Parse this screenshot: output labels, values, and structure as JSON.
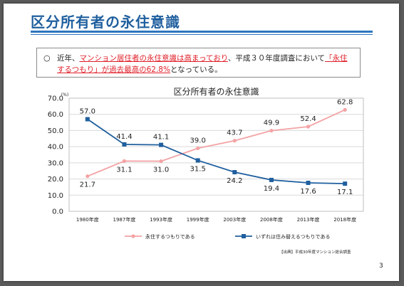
{
  "slide": {
    "title": "区分所有者の永住意識",
    "note_prefix": "近年、",
    "note_red1": "マンション居住者の永住意識は高まっており",
    "note_mid": "、平成３０年度調査において",
    "note_red2": "「永住するつもり」が過去最高の62.8%",
    "note_suffix": "となっている。",
    "source": "【出典】平成30年度マンション総合調査",
    "page_number": "3"
  },
  "chart_data": {
    "type": "line",
    "title": "区分所有者の永住意識",
    "unit_label": "(%)",
    "categories": [
      "1980年度",
      "1987年度",
      "1993年度",
      "1999年度",
      "2003年度",
      "2008年度",
      "2013年度",
      "2018年度"
    ],
    "ylim": [
      0,
      70
    ],
    "yticks": [
      "0.0",
      "10.0",
      "20.0",
      "30.0",
      "40.0",
      "50.0",
      "60.0",
      "70.0"
    ],
    "grid": true,
    "legend_position": "bottom",
    "series": [
      {
        "name": "永住するつもりである",
        "color": "#f4a3a5",
        "marker": "circle",
        "values": [
          21.7,
          31.1,
          31.0,
          39.0,
          43.7,
          49.9,
          52.4,
          62.8
        ]
      },
      {
        "name": "いずれは住み替えるつもりである",
        "color": "#1f5f9e",
        "marker": "square",
        "values": [
          57.0,
          41.4,
          41.1,
          31.5,
          24.2,
          19.4,
          17.6,
          17.1
        ]
      }
    ]
  }
}
